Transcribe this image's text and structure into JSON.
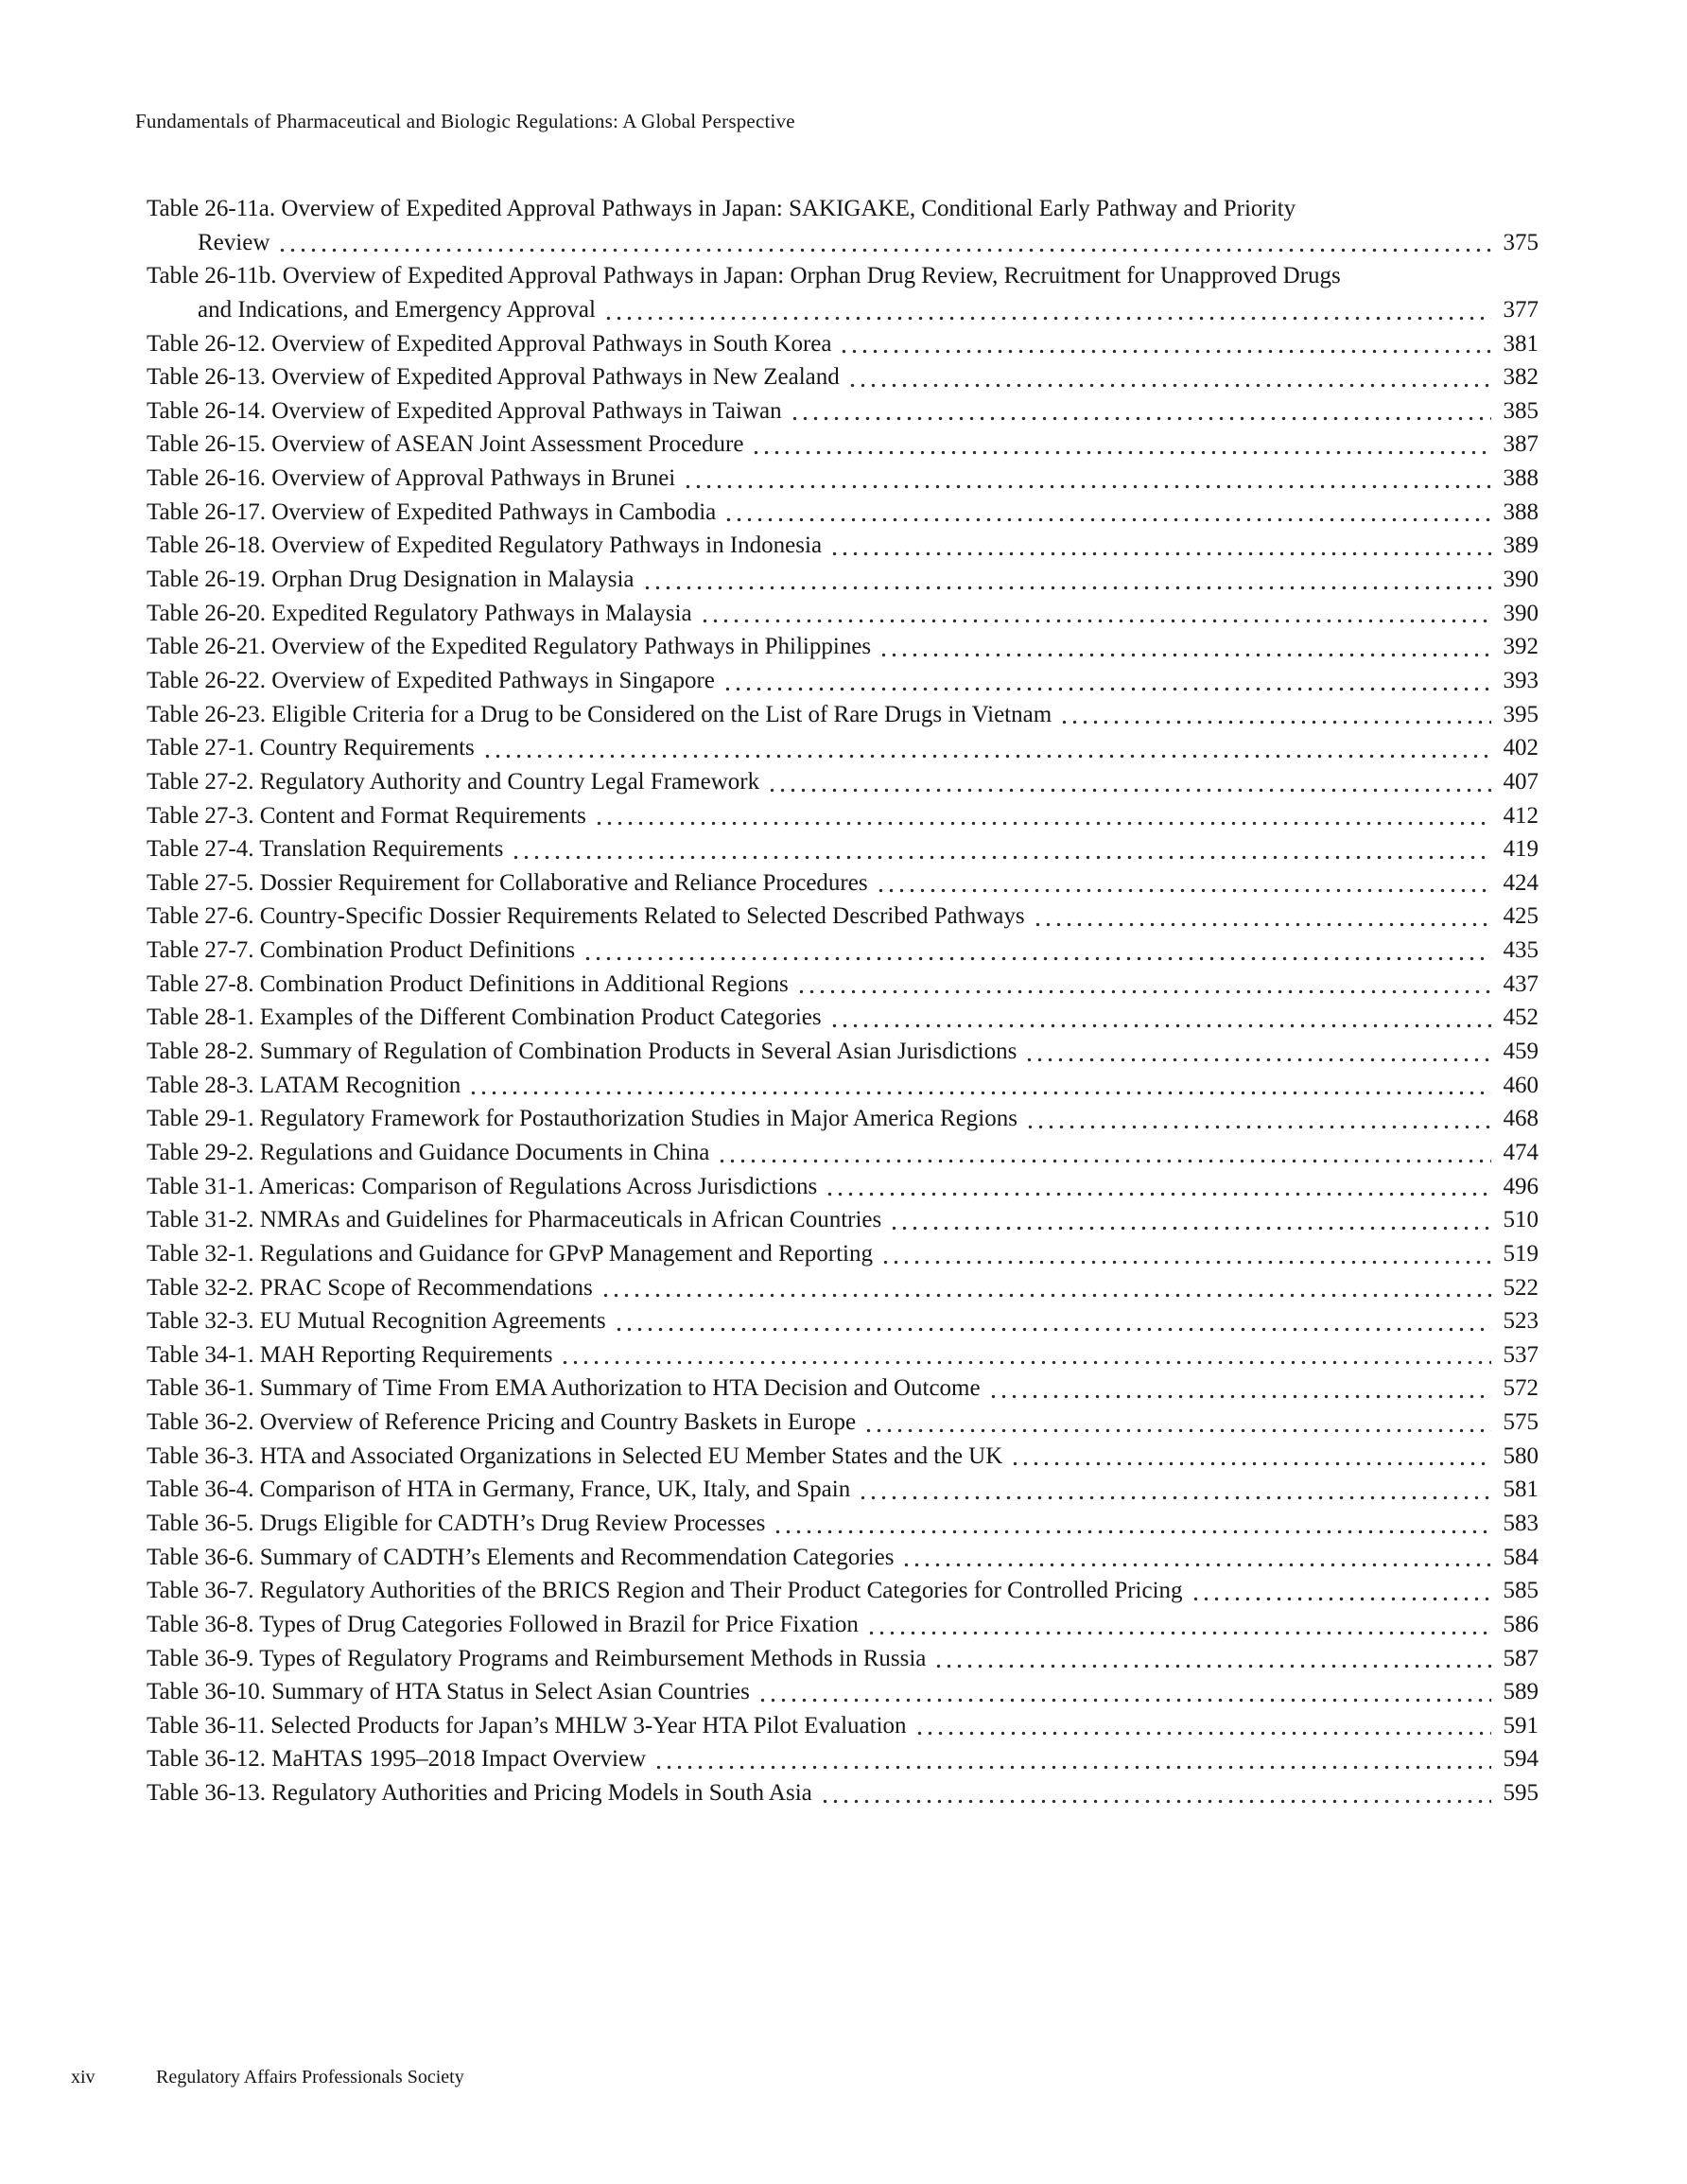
{
  "header": {
    "running_title": "Fundamentals of Pharmaceutical and Biologic Regulations: A Global Perspective"
  },
  "toc": {
    "rows": [
      {
        "text": "Table 26-11a. Overview of Expedited Approval Pathways in Japan: SAKIGAKE, Conditional Early Pathway and Priority",
        "page": null,
        "indent": false
      },
      {
        "text": "Review",
        "page": "375",
        "indent": true
      },
      {
        "text": "Table 26-11b. Overview of Expedited Approval Pathways in Japan: Orphan Drug Review, Recruitment for Unapproved Drugs",
        "page": null,
        "indent": false
      },
      {
        "text": "and Indications, and Emergency Approval",
        "page": "377",
        "indent": true
      },
      {
        "text": "Table 26-12. Overview of Expedited Approval Pathways in South Korea",
        "page": "381",
        "indent": false
      },
      {
        "text": "Table 26-13. Overview of Expedited Approval Pathways in New Zealand",
        "page": "382",
        "indent": false
      },
      {
        "text": "Table 26-14. Overview of Expedited Approval Pathways in Taiwan",
        "page": "385",
        "indent": false
      },
      {
        "text": "Table 26-15. Overview of ASEAN Joint Assessment Procedure",
        "page": "387",
        "indent": false
      },
      {
        "text": "Table 26-16. Overview of Approval Pathways in Brunei",
        "page": "388",
        "indent": false
      },
      {
        "text": "Table 26-17. Overview of Expedited Pathways in Cambodia",
        "page": "388",
        "indent": false
      },
      {
        "text": "Table 26-18. Overview of Expedited Regulatory Pathways in Indonesia",
        "page": "389",
        "indent": false
      },
      {
        "text": "Table 26-19. Orphan Drug Designation in Malaysia",
        "page": "390",
        "indent": false
      },
      {
        "text": "Table 26-20. Expedited Regulatory Pathways in Malaysia",
        "page": "390",
        "indent": false
      },
      {
        "text": "Table 26-21. Overview of the Expedited Regulatory Pathways in Philippines",
        "page": "392",
        "indent": false
      },
      {
        "text": "Table 26-22. Overview of Expedited Pathways in Singapore",
        "page": "393",
        "indent": false
      },
      {
        "text": "Table 26-23. Eligible Criteria for a Drug to be Considered on the List of Rare Drugs in Vietnam",
        "page": "395",
        "indent": false
      },
      {
        "text": "Table 27-1. Country Requirements",
        "page": "402",
        "indent": false
      },
      {
        "text": "Table 27-2. Regulatory Authority and Country Legal Framework",
        "page": "407",
        "indent": false
      },
      {
        "text": "Table 27-3. Content and Format Requirements",
        "page": "412",
        "indent": false
      },
      {
        "text": "Table 27-4. Translation Requirements",
        "page": "419",
        "indent": false
      },
      {
        "text": "Table 27-5. Dossier Requirement for Collaborative and Reliance Procedures",
        "page": "424",
        "indent": false
      },
      {
        "text": "Table 27-6. Country-Specific Dossier Requirements Related to Selected Described Pathways",
        "page": "425",
        "indent": false
      },
      {
        "text": "Table 27-7. Combination Product Definitions",
        "page": "435",
        "indent": false
      },
      {
        "text": "Table 27-8. Combination Product Definitions in Additional Regions",
        "page": "437",
        "indent": false
      },
      {
        "text": "Table 28-1. Examples of the Different Combination Product Categories",
        "page": "452",
        "indent": false
      },
      {
        "text": "Table 28-2. Summary of Regulation of Combination Products in Several Asian Jurisdictions",
        "page": "459",
        "indent": false
      },
      {
        "text": "Table 28-3. LATAM Recognition",
        "page": "460",
        "indent": false
      },
      {
        "text": "Table 29-1. Regulatory Framework for Postauthorization Studies in Major America Regions",
        "page": "468",
        "indent": false
      },
      {
        "text": "Table 29-2. Regulations and Guidance Documents in China",
        "page": "474",
        "indent": false
      },
      {
        "text": "Table 31-1. Americas: Comparison of Regulations Across Jurisdictions",
        "page": "496",
        "indent": false
      },
      {
        "text": "Table 31-2. NMRAs and Guidelines for Pharmaceuticals in African Countries",
        "page": "510",
        "indent": false
      },
      {
        "text": "Table 32-1. Regulations and Guidance for GPvP Management and Reporting",
        "page": "519",
        "indent": false
      },
      {
        "text": "Table 32-2. PRAC Scope of Recommendations",
        "page": "522",
        "indent": false
      },
      {
        "text": "Table 32-3. EU Mutual Recognition Agreements",
        "page": "523",
        "indent": false
      },
      {
        "text": "Table 34-1. MAH Reporting Requirements",
        "page": "537",
        "indent": false
      },
      {
        "text": "Table 36-1. Summary of Time From EMA Authorization to HTA Decision and Outcome",
        "page": "572",
        "indent": false
      },
      {
        "text": "Table 36-2. Overview of Reference Pricing and Country Baskets in Europe",
        "page": "575",
        "indent": false
      },
      {
        "text": "Table 36-3. HTA and Associated Organizations in Selected EU Member States and the UK",
        "page": "580",
        "indent": false
      },
      {
        "text": "Table 36-4. Comparison of HTA in Germany, France, UK, Italy, and Spain",
        "page": "581",
        "indent": false
      },
      {
        "text": "Table 36-5. Drugs Eligible for CADTH’s Drug Review Processes",
        "page": "583",
        "indent": false
      },
      {
        "text": "Table 36-6. Summary of CADTH’s Elements and Recommendation Categories",
        "page": "584",
        "indent": false
      },
      {
        "text": "Table 36-7. Regulatory Authorities of the BRICS Region and Their Product Categories for Controlled Pricing",
        "page": "585",
        "indent": false
      },
      {
        "text": "Table 36-8. Types of Drug Categories Followed in Brazil for Price Fixation",
        "page": "586",
        "indent": false
      },
      {
        "text": "Table 36-9. Types of Regulatory Programs and Reimbursement Methods in Russia",
        "page": "587",
        "indent": false
      },
      {
        "text": "Table 36-10. Summary of HTA Status in Select Asian Countries",
        "page": "589",
        "indent": false
      },
      {
        "text": "Table 36-11. Selected Products for Japan’s MHLW 3-Year HTA Pilot Evaluation",
        "page": "591",
        "indent": false
      },
      {
        "text": "Table 36-12. MaHTAS 1995–2018 Impact Overview",
        "page": "594",
        "indent": false
      },
      {
        "text": "Table 36-13. Regulatory Authorities and Pricing Models in South Asia",
        "page": "595",
        "indent": false
      }
    ]
  },
  "footer": {
    "page_number": "xiv",
    "publisher": "Regulatory Affairs Professionals Society"
  },
  "colors": {
    "text": "#151515",
    "leader_dots": "#2c2c2c",
    "background": "#ffffff"
  }
}
